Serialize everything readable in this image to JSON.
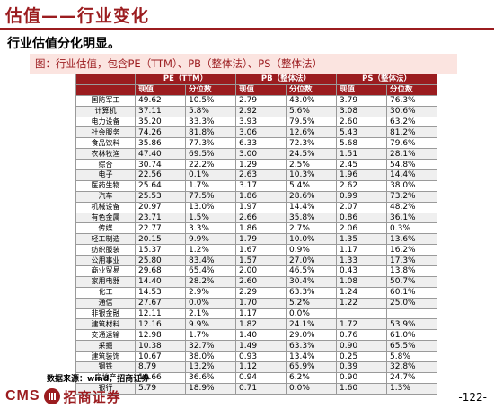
{
  "header": {
    "title": "估值——行业变化",
    "subtitle": "行业估值分化明显。"
  },
  "figure": {
    "caption": "图：行业估值，包含PE（TTM）、PB（整体法）、PS（整体法）"
  },
  "table": {
    "group_headers": [
      "PE（TTM）",
      "PB（整体法）",
      "PS（整体法）"
    ],
    "sub_headers": [
      "现值",
      "分位数",
      "现值",
      "分位数",
      "现值",
      "分位数"
    ],
    "rows": [
      [
        "国防军工",
        "49.62",
        "10.5%",
        "2.79",
        "43.0%",
        "3.79",
        "76.3%"
      ],
      [
        "计算机",
        "37.11",
        "5.8%",
        "2.92",
        "5.6%",
        "3.08",
        "30.6%"
      ],
      [
        "电力设备",
        "35.20",
        "33.3%",
        "3.93",
        "79.5%",
        "2.60",
        "63.2%"
      ],
      [
        "社会服务",
        "74.26",
        "81.8%",
        "3.06",
        "12.6%",
        "5.43",
        "81.2%"
      ],
      [
        "食品饮料",
        "35.86",
        "77.3%",
        "6.33",
        "72.3%",
        "5.68",
        "79.6%"
      ],
      [
        "农林牧渔",
        "47.40",
        "69.5%",
        "3.00",
        "24.5%",
        "1.51",
        "28.1%"
      ],
      [
        "综合",
        "30.74",
        "22.2%",
        "1.29",
        "2.5%",
        "2.45",
        "54.8%"
      ],
      [
        "电子",
        "22.56",
        "0.1%",
        "2.63",
        "10.3%",
        "1.96",
        "14.4%"
      ],
      [
        "医药生物",
        "25.64",
        "1.7%",
        "3.17",
        "5.4%",
        "2.62",
        "38.0%"
      ],
      [
        "汽车",
        "25.53",
        "77.5%",
        "1.86",
        "28.6%",
        "0.99",
        "73.2%"
      ],
      [
        "机械设备",
        "20.97",
        "13.0%",
        "1.97",
        "14.4%",
        "2.07",
        "48.2%"
      ],
      [
        "有色金属",
        "23.71",
        "1.5%",
        "2.66",
        "35.8%",
        "0.86",
        "36.1%"
      ],
      [
        "传媒",
        "22.77",
        "3.3%",
        "1.86",
        "2.7%",
        "2.06",
        "0.3%"
      ],
      [
        "轻工制造",
        "20.15",
        "9.9%",
        "1.79",
        "10.0%",
        "1.35",
        "13.6%"
      ],
      [
        "纺织服装",
        "15.37",
        "1.2%",
        "1.67",
        "0.9%",
        "1.17",
        "16.2%"
      ],
      [
        "公用事业",
        "25.80",
        "83.4%",
        "1.57",
        "27.0%",
        "1.33",
        "17.3%"
      ],
      [
        "商业贸易",
        "29.68",
        "65.4%",
        "2.00",
        "46.5%",
        "0.43",
        "13.8%"
      ],
      [
        "家用电器",
        "14.40",
        "28.2%",
        "2.60",
        "30.4%",
        "1.08",
        "50.7%"
      ],
      [
        "化工",
        "14.53",
        "2.9%",
        "2.29",
        "63.3%",
        "1.24",
        "60.1%"
      ],
      [
        "通信",
        "27.67",
        "0.0%",
        "1.70",
        "5.2%",
        "1.22",
        "25.0%"
      ],
      [
        "非银金融",
        "12.11",
        "2.1%",
        "1.17",
        "0.0%",
        "",
        ""
      ],
      [
        "建筑材料",
        "12.16",
        "9.9%",
        "1.82",
        "24.1%",
        "1.72",
        "53.9%"
      ],
      [
        "交通运输",
        "12.98",
        "1.7%",
        "1.40",
        "29.0%",
        "0.76",
        "61.0%"
      ],
      [
        "采掘",
        "10.38",
        "32.7%",
        "1.49",
        "63.3%",
        "0.90",
        "65.5%"
      ],
      [
        "建筑装饰",
        "10.67",
        "38.0%",
        "0.93",
        "13.4%",
        "0.25",
        "5.8%"
      ],
      [
        "钢铁",
        "8.79",
        "13.2%",
        "1.12",
        "65.9%",
        "0.39",
        "32.8%"
      ],
      [
        "房地产",
        "10.66",
        "36.6%",
        "0.94",
        "6.2%",
        "0.90",
        "24.7%"
      ],
      [
        "银行",
        "5.79",
        "18.9%",
        "0.71",
        "0.0%",
        "1.60",
        "1.3%"
      ]
    ]
  },
  "footer": {
    "source": "数据来源：wind，招商证券",
    "logo_text": "CMS",
    "logo_cn": "招商证券",
    "page_number": "-122-"
  },
  "colors": {
    "brand": "#9b1c1f",
    "caption_bg": "#fbe4e0",
    "row_alt": "#efefef"
  }
}
